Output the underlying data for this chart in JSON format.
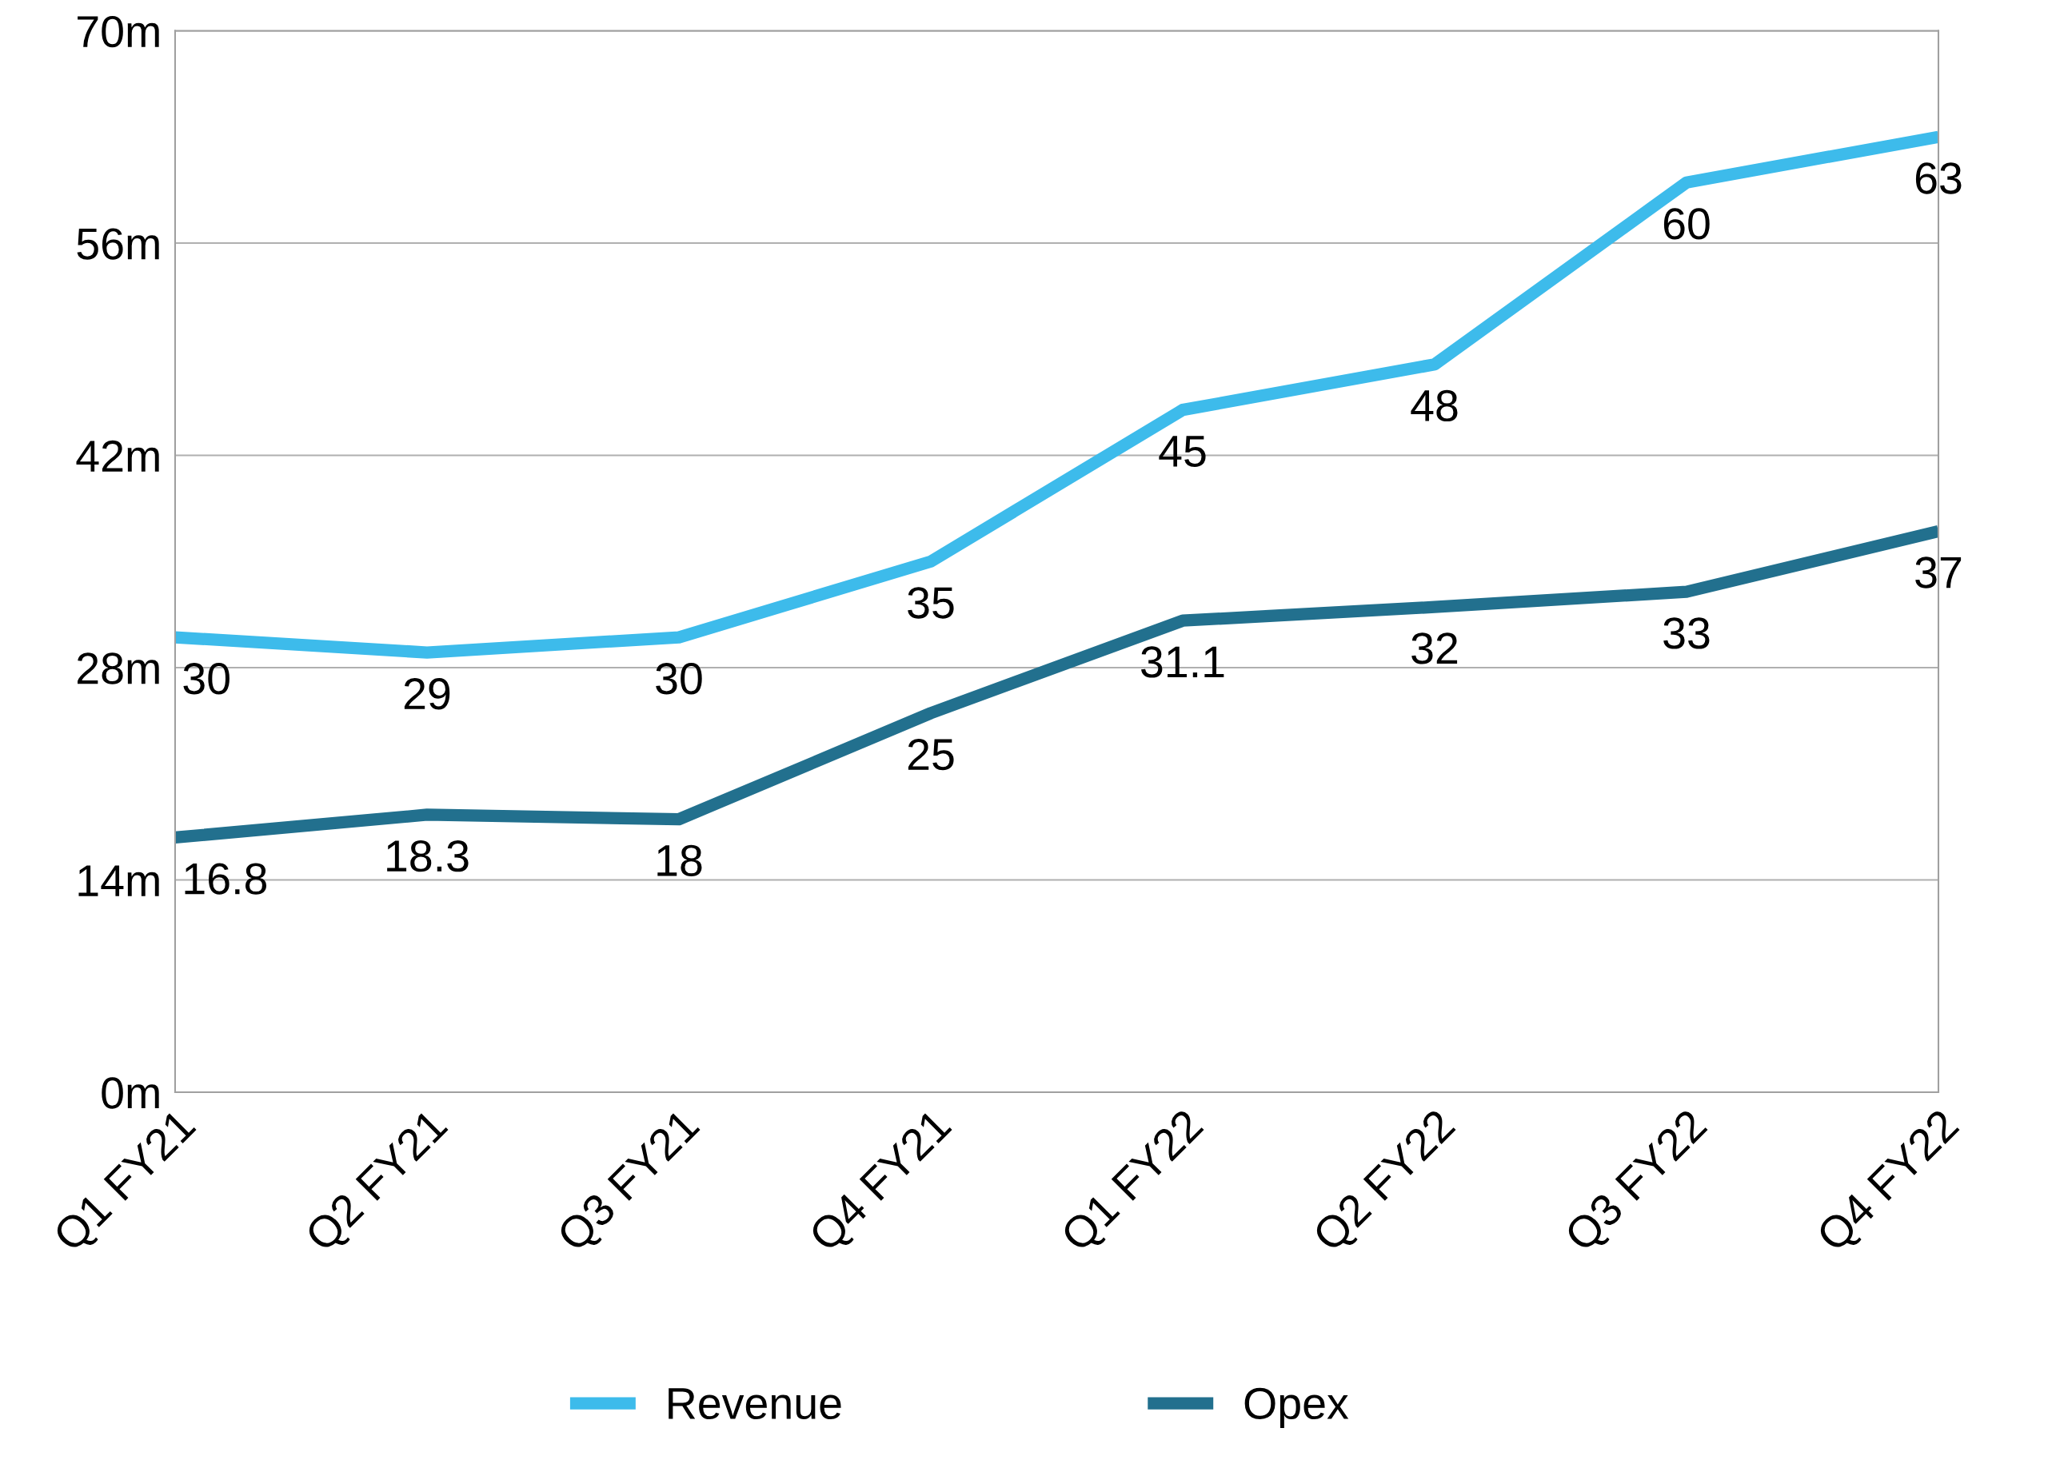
{
  "chart_data": {
    "type": "line",
    "categories": [
      "Q1 FY21",
      "Q2 FY21",
      "Q3 FY21",
      "Q4 FY21",
      "Q1 FY22",
      "Q2 FY22",
      "Q3 FY22",
      "Q4 FY22"
    ],
    "series": [
      {
        "name": "Revenue",
        "color": "#3dbbeb",
        "values": [
          30,
          29,
          30,
          35,
          45,
          48,
          60,
          63
        ]
      },
      {
        "name": "Opex",
        "color": "#22708e",
        "values": [
          16.8,
          18.3,
          18,
          25,
          31.1,
          32,
          33,
          37
        ]
      }
    ],
    "ylim": [
      0,
      70
    ],
    "yticks": [
      {
        "value": 0,
        "label": "0m"
      },
      {
        "value": 14,
        "label": "14m"
      },
      {
        "value": 28,
        "label": "28m"
      },
      {
        "value": 42,
        "label": "42m"
      },
      {
        "value": 56,
        "label": "56m"
      },
      {
        "value": 70,
        "label": "70m"
      }
    ],
    "grid": "y",
    "legend": "bottom",
    "data_labels": true,
    "line_style": "solid",
    "marker": "none"
  }
}
